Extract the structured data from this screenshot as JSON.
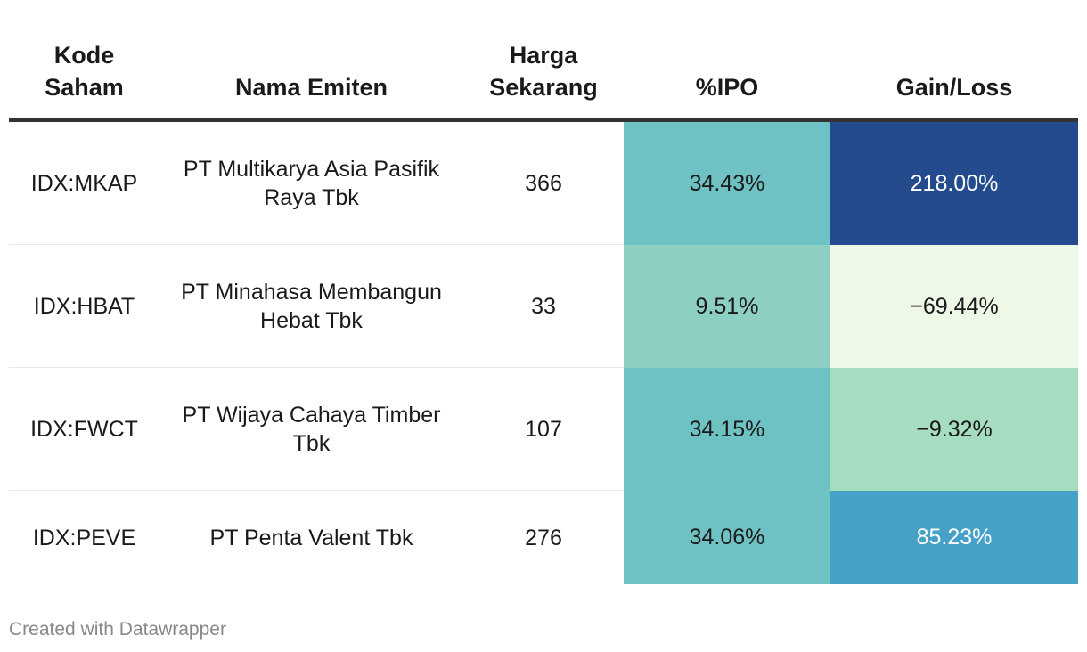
{
  "chart_data": {
    "type": "table",
    "columns": [
      "Kode Saham",
      "Nama Emiten",
      "Harga Sekarang",
      "%IPO",
      "Gain/Loss"
    ],
    "rows": [
      {
        "kode": "IDX:MKAP",
        "nama": "PT Multikarya Asia Pasifik Raya Tbk",
        "harga": "366",
        "ipo": "34.43%",
        "gain": "218.00%",
        "ipo_value": 34.43,
        "gain_value": 218.0
      },
      {
        "kode": "IDX:HBAT",
        "nama": "PT Minahasa Membangun Hebat Tbk",
        "harga": "33",
        "ipo": "9.51%",
        "gain": "−69.44%",
        "ipo_value": 9.51,
        "gain_value": -69.44
      },
      {
        "kode": "IDX:FWCT",
        "nama": "PT Wijaya Cahaya Timber Tbk",
        "harga": "107",
        "ipo": "34.15%",
        "gain": "−9.32%",
        "ipo_value": 34.15,
        "gain_value": -9.32
      },
      {
        "kode": "IDX:PEVE",
        "nama": "PT Penta Valent Tbk",
        "harga": "276",
        "ipo": "34.06%",
        "gain": "85.23%",
        "ipo_value": 34.06,
        "gain_value": 85.23
      }
    ],
    "heatmap_colors": {
      "ipo": [
        "#6fc2c4",
        "#8ecfc4",
        "#6fc2c4",
        "#6fc2c4"
      ],
      "gain": [
        "#244b8d",
        "#eef8e6",
        "#a6ddc0",
        "#45a1c7"
      ],
      "gain_text": [
        "#ffffff",
        "#1a1a1a",
        "#1a1a1a",
        "#ffffff"
      ]
    }
  },
  "header": {
    "kode_line1": "Kode",
    "kode_line2": "Saham",
    "nama": "Nama Emiten",
    "harga_line1": "Harga",
    "harga_line2": "Sekarang",
    "ipo": "%IPO",
    "gain": "Gain/Loss"
  },
  "footer": "Created with Datawrapper"
}
